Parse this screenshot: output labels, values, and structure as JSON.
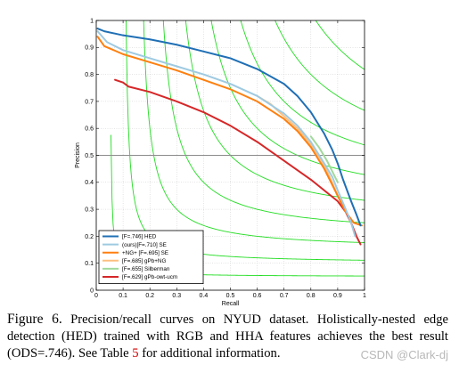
{
  "chart_data": {
    "type": "line",
    "xlabel": "Recall",
    "ylabel": "Precision",
    "xlim": [
      0,
      1
    ],
    "ylim": [
      0,
      1
    ],
    "x_ticks": [
      "0",
      "0.1",
      "0.2",
      "0.3",
      "0.4",
      "0.5",
      "0.6",
      "0.7",
      "0.8",
      "0.9",
      "1"
    ],
    "y_ticks": [
      "0",
      "0.1",
      "0.2",
      "0.3",
      "0.4",
      "0.5",
      "0.6",
      "0.7",
      "0.8",
      "0.9",
      "1"
    ],
    "grid": true,
    "legend_position": "bottom-left",
    "reference_line_y": 0.5,
    "iso_f_values": [
      0.1,
      0.2,
      0.3,
      0.4,
      0.5,
      0.6,
      0.7,
      0.8,
      0.9
    ],
    "series": [
      {
        "name": "[F=.746] HED",
        "color": "#1f6fb5",
        "points": [
          [
            0.005,
            0.97
          ],
          [
            0.03,
            0.96
          ],
          [
            0.1,
            0.945
          ],
          [
            0.2,
            0.93
          ],
          [
            0.3,
            0.91
          ],
          [
            0.4,
            0.885
          ],
          [
            0.5,
            0.86
          ],
          [
            0.6,
            0.82
          ],
          [
            0.7,
            0.765
          ],
          [
            0.75,
            0.72
          ],
          [
            0.8,
            0.66
          ],
          [
            0.85,
            0.58
          ],
          [
            0.88,
            0.52
          ],
          [
            0.9,
            0.47
          ],
          [
            0.92,
            0.41
          ],
          [
            0.95,
            0.33
          ],
          [
            0.97,
            0.28
          ],
          [
            0.985,
            0.24
          ]
        ]
      },
      {
        "name": "(ours)[F=.710] SE",
        "color": "#9ecae1",
        "points": [
          [
            0.005,
            0.96
          ],
          [
            0.04,
            0.92
          ],
          [
            0.1,
            0.89
          ],
          [
            0.2,
            0.86
          ],
          [
            0.3,
            0.83
          ],
          [
            0.4,
            0.8
          ],
          [
            0.5,
            0.765
          ],
          [
            0.6,
            0.72
          ],
          [
            0.7,
            0.655
          ],
          [
            0.75,
            0.61
          ],
          [
            0.8,
            0.55
          ],
          [
            0.85,
            0.47
          ],
          [
            0.88,
            0.42
          ],
          [
            0.9,
            0.37
          ],
          [
            0.93,
            0.3
          ],
          [
            0.95,
            0.25
          ],
          [
            0.965,
            0.2
          ]
        ]
      },
      {
        "name": "+NG+ [F=.695] SE",
        "color": "#ff7f0e",
        "points": [
          [
            0.005,
            0.94
          ],
          [
            0.03,
            0.905
          ],
          [
            0.1,
            0.875
          ],
          [
            0.2,
            0.845
          ],
          [
            0.3,
            0.815
          ],
          [
            0.4,
            0.78
          ],
          [
            0.5,
            0.745
          ],
          [
            0.6,
            0.7
          ],
          [
            0.7,
            0.635
          ],
          [
            0.75,
            0.59
          ],
          [
            0.8,
            0.53
          ],
          [
            0.85,
            0.45
          ],
          [
            0.88,
            0.39
          ],
          [
            0.9,
            0.35
          ],
          [
            0.93,
            0.29
          ],
          [
            0.96,
            0.25
          ],
          [
            0.99,
            0.24
          ]
        ]
      },
      {
        "name": "[F=.685] gPb+NG",
        "color": "#fdbf80",
        "points": [
          [
            0.6,
            0.72
          ],
          [
            0.65,
            0.69
          ],
          [
            0.7,
            0.645
          ],
          [
            0.75,
            0.6
          ],
          [
            0.8,
            0.54
          ],
          [
            0.84,
            0.48
          ],
          [
            0.87,
            0.42
          ],
          [
            0.9,
            0.35
          ]
        ]
      },
      {
        "name": "[F=.655] Silberman",
        "color": "#a1d99b",
        "points": [
          [
            0.8,
            0.57
          ],
          [
            0.83,
            0.53
          ],
          [
            0.86,
            0.48
          ],
          [
            0.88,
            0.44
          ],
          [
            0.9,
            0.4
          ]
        ]
      },
      {
        "name": "[F=.629] gPb-owt-ucm",
        "color": "#d62728",
        "points": [
          [
            0.07,
            0.78
          ],
          [
            0.1,
            0.77
          ],
          [
            0.12,
            0.755
          ],
          [
            0.2,
            0.735
          ],
          [
            0.3,
            0.7
          ],
          [
            0.4,
            0.66
          ],
          [
            0.5,
            0.61
          ],
          [
            0.6,
            0.55
          ],
          [
            0.7,
            0.48
          ],
          [
            0.8,
            0.41
          ],
          [
            0.85,
            0.37
          ],
          [
            0.9,
            0.33
          ],
          [
            0.93,
            0.29
          ],
          [
            0.95,
            0.25
          ],
          [
            0.97,
            0.2
          ],
          [
            0.985,
            0.17
          ]
        ]
      }
    ]
  },
  "caption": {
    "figure_label": "Figure 6.",
    "text_before_ref": "Precision/recall curves on NYUD dataset. Holistically-nested edge detection (HED) trained with RGB and HHA features achieves the best result (ODS=.746). See Table",
    "table_ref": "5",
    "text_after_ref": "for additional information."
  },
  "watermark": "CSDN @Clark-dj",
  "colors": {
    "iso_f": "#22dd22",
    "grid": "#c8c8c8",
    "reference_line": "#8c8c8c"
  }
}
